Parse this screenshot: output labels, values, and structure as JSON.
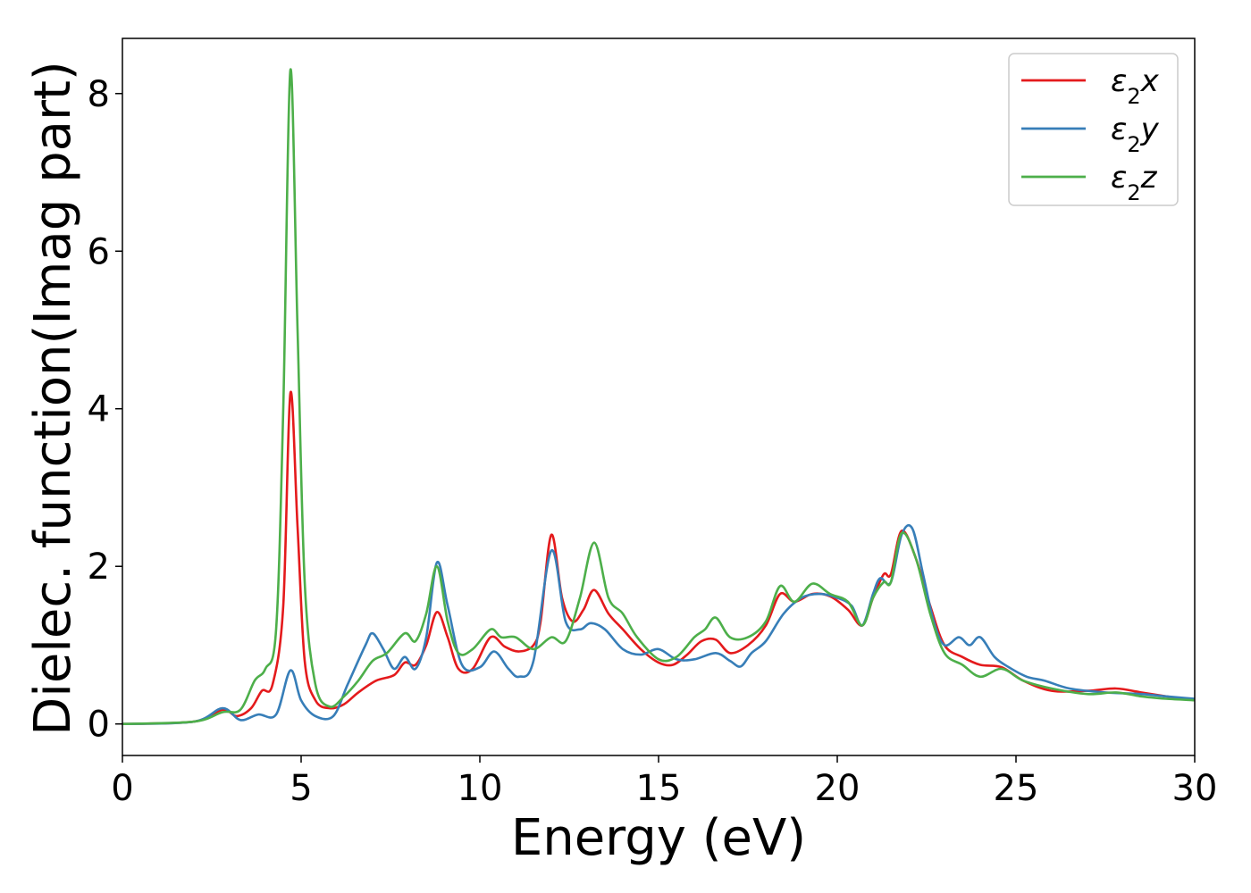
{
  "chart_data": {
    "type": "line",
    "title": "",
    "xlabel": "Energy (eV)",
    "ylabel": "Dielec. function(Imag part)",
    "xlim": [
      0,
      30
    ],
    "ylim": [
      -0.4,
      8.7
    ],
    "xticks": [
      "0",
      "5",
      "10",
      "15",
      "20",
      "25",
      "30"
    ],
    "yticks": [
      "0",
      "2",
      "4",
      "6",
      "8"
    ],
    "grid": false,
    "legend": "top-right",
    "series": [
      {
        "name": "ε₂x",
        "legend_label": {
          "base": "ε",
          "sub": "2",
          "var": "x"
        },
        "color": "#e41a1c",
        "points": [
          [
            0,
            0
          ],
          [
            2,
            0.03
          ],
          [
            2.8,
            0.18
          ],
          [
            3.2,
            0.1
          ],
          [
            3.6,
            0.2
          ],
          [
            3.9,
            0.42
          ],
          [
            4.2,
            0.5
          ],
          [
            4.5,
            1.5
          ],
          [
            4.7,
            4.2
          ],
          [
            4.9,
            2.5
          ],
          [
            5.1,
            0.8
          ],
          [
            5.4,
            0.3
          ],
          [
            5.8,
            0.2
          ],
          [
            6.2,
            0.25
          ],
          [
            6.6,
            0.4
          ],
          [
            7.1,
            0.55
          ],
          [
            7.6,
            0.62
          ],
          [
            7.9,
            0.78
          ],
          [
            8.2,
            0.75
          ],
          [
            8.5,
            1.0
          ],
          [
            8.8,
            1.42
          ],
          [
            9.1,
            1.1
          ],
          [
            9.4,
            0.7
          ],
          [
            9.8,
            0.7
          ],
          [
            10.3,
            1.1
          ],
          [
            10.7,
            0.98
          ],
          [
            11.1,
            0.92
          ],
          [
            11.5,
            1.0
          ],
          [
            11.7,
            1.3
          ],
          [
            12.0,
            2.4
          ],
          [
            12.3,
            1.6
          ],
          [
            12.6,
            1.3
          ],
          [
            12.9,
            1.45
          ],
          [
            13.2,
            1.7
          ],
          [
            13.6,
            1.4
          ],
          [
            14.0,
            1.2
          ],
          [
            14.5,
            0.95
          ],
          [
            15.0,
            0.78
          ],
          [
            15.4,
            0.75
          ],
          [
            15.8,
            0.88
          ],
          [
            16.2,
            1.05
          ],
          [
            16.6,
            1.07
          ],
          [
            17.0,
            0.9
          ],
          [
            17.5,
            1.0
          ],
          [
            18.0,
            1.25
          ],
          [
            18.4,
            1.65
          ],
          [
            18.8,
            1.55
          ],
          [
            19.3,
            1.65
          ],
          [
            19.8,
            1.62
          ],
          [
            20.3,
            1.45
          ],
          [
            20.7,
            1.25
          ],
          [
            21.0,
            1.6
          ],
          [
            21.3,
            1.9
          ],
          [
            21.5,
            1.9
          ],
          [
            21.8,
            2.45
          ],
          [
            22.2,
            2.1
          ],
          [
            22.6,
            1.5
          ],
          [
            23.0,
            1.0
          ],
          [
            23.5,
            0.85
          ],
          [
            24.0,
            0.75
          ],
          [
            24.6,
            0.72
          ],
          [
            25.2,
            0.55
          ],
          [
            26.0,
            0.42
          ],
          [
            27.0,
            0.42
          ],
          [
            27.8,
            0.45
          ],
          [
            28.5,
            0.4
          ],
          [
            29.2,
            0.35
          ],
          [
            30,
            0.3
          ]
        ]
      },
      {
        "name": "ε₂y",
        "legend_label": {
          "base": "ε",
          "sub": "2",
          "var": "y"
        },
        "color": "#377eb8",
        "points": [
          [
            0,
            0
          ],
          [
            2,
            0.03
          ],
          [
            2.8,
            0.2
          ],
          [
            3.3,
            0.05
          ],
          [
            3.8,
            0.12
          ],
          [
            4.3,
            0.12
          ],
          [
            4.7,
            0.68
          ],
          [
            5.0,
            0.3
          ],
          [
            5.4,
            0.1
          ],
          [
            5.9,
            0.1
          ],
          [
            6.3,
            0.5
          ],
          [
            6.8,
            1.0
          ],
          [
            7.0,
            1.15
          ],
          [
            7.3,
            0.95
          ],
          [
            7.6,
            0.7
          ],
          [
            7.9,
            0.85
          ],
          [
            8.2,
            0.7
          ],
          [
            8.5,
            1.1
          ],
          [
            8.8,
            2.05
          ],
          [
            9.1,
            1.5
          ],
          [
            9.5,
            0.75
          ],
          [
            10.0,
            0.72
          ],
          [
            10.4,
            0.92
          ],
          [
            10.8,
            0.7
          ],
          [
            11.1,
            0.6
          ],
          [
            11.5,
            0.8
          ],
          [
            12.0,
            2.2
          ],
          [
            12.4,
            1.3
          ],
          [
            12.8,
            1.2
          ],
          [
            13.1,
            1.28
          ],
          [
            13.5,
            1.2
          ],
          [
            14.0,
            0.95
          ],
          [
            14.5,
            0.88
          ],
          [
            15.0,
            0.95
          ],
          [
            15.5,
            0.82
          ],
          [
            16.0,
            0.82
          ],
          [
            16.6,
            0.9
          ],
          [
            17.0,
            0.8
          ],
          [
            17.3,
            0.73
          ],
          [
            17.6,
            0.9
          ],
          [
            18.0,
            1.05
          ],
          [
            18.5,
            1.4
          ],
          [
            19.0,
            1.6
          ],
          [
            19.5,
            1.65
          ],
          [
            20.0,
            1.6
          ],
          [
            20.4,
            1.5
          ],
          [
            20.7,
            1.25
          ],
          [
            21.0,
            1.65
          ],
          [
            21.2,
            1.85
          ],
          [
            21.5,
            1.8
          ],
          [
            21.8,
            2.4
          ],
          [
            22.1,
            2.48
          ],
          [
            22.4,
            1.9
          ],
          [
            22.7,
            1.3
          ],
          [
            23.0,
            1.0
          ],
          [
            23.4,
            1.1
          ],
          [
            23.7,
            1.0
          ],
          [
            24.0,
            1.1
          ],
          [
            24.4,
            0.85
          ],
          [
            24.8,
            0.72
          ],
          [
            25.3,
            0.6
          ],
          [
            25.8,
            0.55
          ],
          [
            26.5,
            0.45
          ],
          [
            27.5,
            0.4
          ],
          [
            28.5,
            0.38
          ],
          [
            29.2,
            0.35
          ],
          [
            30,
            0.32
          ]
        ]
      },
      {
        "name": "ε₂z",
        "legend_label": {
          "base": "ε",
          "sub": "2",
          "var": "z"
        },
        "color": "#4daf4a",
        "points": [
          [
            0,
            0
          ],
          [
            2,
            0.03
          ],
          [
            2.8,
            0.15
          ],
          [
            3.3,
            0.18
          ],
          [
            3.7,
            0.55
          ],
          [
            4.0,
            0.7
          ],
          [
            4.3,
            1.2
          ],
          [
            4.5,
            4.0
          ],
          [
            4.7,
            8.3
          ],
          [
            4.9,
            5.0
          ],
          [
            5.1,
            1.8
          ],
          [
            5.4,
            0.5
          ],
          [
            5.8,
            0.22
          ],
          [
            6.2,
            0.35
          ],
          [
            6.6,
            0.55
          ],
          [
            7.0,
            0.8
          ],
          [
            7.4,
            0.9
          ],
          [
            7.9,
            1.15
          ],
          [
            8.2,
            1.05
          ],
          [
            8.5,
            1.4
          ],
          [
            8.8,
            2.0
          ],
          [
            9.1,
            1.3
          ],
          [
            9.4,
            0.9
          ],
          [
            9.8,
            0.95
          ],
          [
            10.3,
            1.2
          ],
          [
            10.6,
            1.1
          ],
          [
            11.0,
            1.1
          ],
          [
            11.5,
            0.95
          ],
          [
            12.0,
            1.1
          ],
          [
            12.4,
            1.05
          ],
          [
            12.8,
            1.6
          ],
          [
            13.2,
            2.3
          ],
          [
            13.6,
            1.6
          ],
          [
            14.0,
            1.4
          ],
          [
            14.4,
            1.1
          ],
          [
            15.0,
            0.82
          ],
          [
            15.5,
            0.85
          ],
          [
            16.0,
            1.1
          ],
          [
            16.3,
            1.2
          ],
          [
            16.6,
            1.35
          ],
          [
            17.0,
            1.1
          ],
          [
            17.5,
            1.1
          ],
          [
            18.0,
            1.3
          ],
          [
            18.4,
            1.75
          ],
          [
            18.8,
            1.55
          ],
          [
            19.3,
            1.78
          ],
          [
            19.8,
            1.65
          ],
          [
            20.3,
            1.55
          ],
          [
            20.7,
            1.25
          ],
          [
            21.0,
            1.6
          ],
          [
            21.3,
            1.8
          ],
          [
            21.5,
            1.8
          ],
          [
            21.8,
            2.42
          ],
          [
            22.2,
            2.1
          ],
          [
            22.6,
            1.4
          ],
          [
            23.0,
            0.9
          ],
          [
            23.5,
            0.75
          ],
          [
            24.0,
            0.6
          ],
          [
            24.6,
            0.7
          ],
          [
            25.2,
            0.55
          ],
          [
            26.0,
            0.45
          ],
          [
            27.0,
            0.38
          ],
          [
            27.8,
            0.4
          ],
          [
            28.5,
            0.35
          ],
          [
            29.2,
            0.32
          ],
          [
            30,
            0.3
          ]
        ]
      }
    ]
  }
}
